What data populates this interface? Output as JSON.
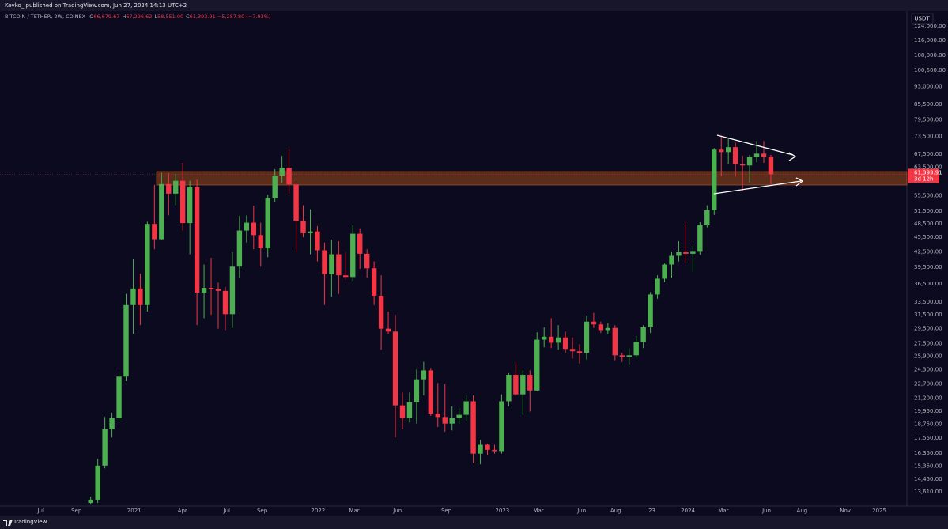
{
  "header": {
    "text": "Kevko_ published on TradingView.com, Jun 27, 2024 14:13 UTC+2"
  },
  "footer": {
    "brand": "TradingView"
  },
  "chart_data": {
    "type": "candlestick",
    "title": "BITCOIN / TETHER, 2W, COINEX",
    "legend_values": [
      {
        "key": "O",
        "value": "66,679.67"
      },
      {
        "key": "H",
        "value": "67,296.62"
      },
      {
        "key": "L",
        "value": "58,551.00"
      },
      {
        "key": "C",
        "value": "61,393.91"
      }
    ],
    "change": "−5,287.80 (−7.93%)",
    "currency": "USDT",
    "last_price_label": "61,393.91",
    "countdown": "3d 12h",
    "up_color": "#4caf50",
    "down_color": "#f23645",
    "log_scale": true,
    "x": [
      0,
      1,
      2,
      3,
      4,
      5,
      6,
      7,
      8,
      9,
      10,
      11,
      12,
      13,
      14,
      15,
      16,
      17,
      18,
      19,
      20,
      21,
      22,
      23,
      24,
      25,
      26,
      27,
      28,
      29,
      30,
      31,
      32,
      33,
      34,
      35,
      36,
      37,
      38,
      39,
      40,
      41,
      42,
      43,
      44,
      45,
      46,
      47,
      48,
      49,
      50,
      51,
      52,
      53,
      54,
      55,
      56,
      57,
      58,
      59,
      60,
      61,
      62,
      63,
      64,
      65,
      66,
      67,
      68,
      69,
      70,
      71,
      72,
      73,
      74,
      75,
      76,
      77,
      78,
      79,
      80,
      81,
      82,
      83,
      84,
      85,
      86,
      87,
      88,
      89,
      90,
      91,
      92,
      93,
      94,
      95,
      96
    ],
    "open": [
      12900,
      13100,
      15400,
      18300,
      19300,
      23500,
      33000,
      35700,
      33000,
      48500,
      45100,
      58600,
      56000,
      59500,
      48700,
      57800,
      35000,
      35800,
      35600,
      35300,
      31600,
      39600,
      47000,
      48800,
      46000,
      43200,
      54800,
      61000,
      63300,
      58500,
      49200,
      46400,
      46800,
      42800,
      38200,
      42000,
      38000,
      37700,
      46300,
      42100,
      39300,
      34500,
      29500,
      29100,
      20500,
      19300,
      20800,
      23200,
      24200,
      19700,
      19400,
      18800,
      19300,
      19600,
      20900,
      16300,
      17000,
      16600,
      16500,
      20900,
      23700,
      21600,
      23700,
      22000,
      28000,
      28400,
      27600,
      28300,
      26800,
      26500,
      26300,
      30500,
      30100,
      29300,
      29600,
      26000,
      25800,
      26000,
      27700,
      29700,
      34700,
      37400,
      40000,
      41700,
      42400,
      42100,
      42500,
      48200,
      51800,
      69000,
      68200,
      69800,
      64400,
      64000,
      66600,
      67700,
      66679.67
    ],
    "high": [
      13300,
      15900,
      19400,
      19800,
      24100,
      34800,
      41000,
      38300,
      49000,
      58400,
      61800,
      61700,
      61500,
      64800,
      59500,
      59800,
      40000,
      41300,
      36700,
      36000,
      42400,
      50400,
      50500,
      52900,
      48800,
      55700,
      62900,
      67000,
      69000,
      59000,
      53000,
      52000,
      48000,
      44400,
      45000,
      44700,
      42300,
      48200,
      47500,
      43000,
      40600,
      38000,
      32000,
      31500,
      21800,
      21800,
      24300,
      25200,
      24400,
      22800,
      22700,
      20400,
      20200,
      21500,
      21500,
      17400,
      17100,
      17000,
      21600,
      23900,
      25200,
      24200,
      24200,
      29000,
      29700,
      31000,
      30000,
      29100,
      28300,
      27400,
      31400,
      31800,
      30500,
      30300,
      30000,
      26300,
      26900,
      28500,
      30000,
      35100,
      38000,
      40200,
      42400,
      44700,
      48900,
      43700,
      48900,
      53000,
      69500,
      73700,
      72700,
      71300,
      67000,
      67300,
      71900,
      71900,
      67296.62
    ],
    "low": [
      12800,
      12900,
      15200,
      17600,
      19000,
      23000,
      28800,
      30000,
      32000,
      43000,
      44900,
      50500,
      53000,
      47000,
      42000,
      30000,
      31000,
      31500,
      29500,
      29300,
      29600,
      37500,
      44400,
      43000,
      39600,
      41400,
      53800,
      58900,
      56000,
      42500,
      45500,
      42000,
      40600,
      33000,
      34300,
      34800,
      37200,
      37000,
      39200,
      37600,
      33000,
      26700,
      28800,
      17600,
      18300,
      18900,
      18800,
      21500,
      19500,
      18500,
      18100,
      18200,
      18800,
      19000,
      15600,
      15500,
      16200,
      16300,
      16300,
      20400,
      21400,
      19600,
      19900,
      21900,
      27000,
      26900,
      26700,
      26300,
      25600,
      25000,
      25500,
      29600,
      28900,
      28700,
      25400,
      25200,
      24900,
      25700,
      26900,
      28900,
      34000,
      36800,
      37600,
      40600,
      40300,
      38600,
      41900,
      47700,
      50600,
      60800,
      64500,
      60700,
      56600,
      59000,
      65000,
      64800,
      58551.0
    ],
    "close": [
      13100,
      15400,
      18300,
      19300,
      23500,
      33000,
      35700,
      33000,
      48500,
      45100,
      58600,
      56000,
      59500,
      48700,
      57800,
      35000,
      35800,
      35600,
      35300,
      31600,
      39600,
      47000,
      48800,
      46000,
      43200,
      54800,
      61000,
      63300,
      58500,
      49200,
      46400,
      46800,
      42800,
      38200,
      42000,
      38000,
      37700,
      46300,
      42100,
      39300,
      34500,
      29500,
      29100,
      20500,
      19300,
      20800,
      23200,
      24200,
      19700,
      19400,
      18800,
      19300,
      19600,
      20900,
      16300,
      17000,
      16600,
      16500,
      20900,
      23700,
      21600,
      23700,
      22000,
      28000,
      28400,
      27600,
      28300,
      26800,
      26500,
      26300,
      30500,
      30100,
      29300,
      29600,
      26000,
      25800,
      26000,
      27700,
      29700,
      34700,
      37400,
      40000,
      41700,
      42400,
      42100,
      42500,
      48200,
      51800,
      69000,
      68200,
      69800,
      64400,
      64000,
      66600,
      67700,
      66700,
      61393.91
    ],
    "xlim": [
      -12.8,
      115.2
    ],
    "xticks": [
      {
        "value": -7.03,
        "label": "Jul"
      },
      {
        "value": -2.0,
        "label": "Sep"
      },
      {
        "value": 6.14,
        "label": "2021"
      },
      {
        "value": 12.95,
        "label": "Apr"
      },
      {
        "value": 19.2,
        "label": "Jul"
      },
      {
        "value": 24.2,
        "label": "Sep"
      },
      {
        "value": 32.1,
        "label": "2022"
      },
      {
        "value": 37.2,
        "label": "Mar"
      },
      {
        "value": 43.3,
        "label": "Jun"
      },
      {
        "value": 50.2,
        "label": "Sep"
      },
      {
        "value": 58.1,
        "label": "2023"
      },
      {
        "value": 63.2,
        "label": "Mar"
      },
      {
        "value": 69.3,
        "label": "Jun"
      },
      {
        "value": 74.1,
        "label": "Aug"
      },
      {
        "value": 79.2,
        "label": "23"
      },
      {
        "value": 84.3,
        "label": "2024"
      },
      {
        "value": 89.3,
        "label": "Mar"
      },
      {
        "value": 95.4,
        "label": "Jun"
      },
      {
        "value": 100.4,
        "label": "Aug"
      },
      {
        "value": 106.5,
        "label": "Nov"
      },
      {
        "value": 111.3,
        "label": "2025"
      }
    ],
    "ylim": [
      12710,
      132700
    ],
    "yticks": [
      {
        "value": 124000,
        "label": "124,000.00"
      },
      {
        "value": 116000,
        "label": "116,000.00"
      },
      {
        "value": 108000,
        "label": "108,000.00"
      },
      {
        "value": 100500,
        "label": "100,500.00"
      },
      {
        "value": 93000,
        "label": "93,000.00"
      },
      {
        "value": 85500,
        "label": "85,500.00"
      },
      {
        "value": 79500,
        "label": "79,500.00"
      },
      {
        "value": 73500,
        "label": "73,500.00"
      },
      {
        "value": 67500,
        "label": "67,500.00"
      },
      {
        "value": 63500,
        "label": "63,500.00"
      },
      {
        "value": 55500,
        "label": "55,500.00"
      },
      {
        "value": 51500,
        "label": "51,500.00"
      },
      {
        "value": 48500,
        "label": "48,500.00"
      },
      {
        "value": 45500,
        "label": "45,500.00"
      },
      {
        "value": 42500,
        "label": "42,500.00"
      },
      {
        "value": 39500,
        "label": "39,500.00"
      },
      {
        "value": 36500,
        "label": "36,500.00"
      },
      {
        "value": 33500,
        "label": "33,500.00"
      },
      {
        "value": 31500,
        "label": "31,500.00"
      },
      {
        "value": 29500,
        "label": "29,500.00"
      },
      {
        "value": 27500,
        "label": "27,500.00"
      },
      {
        "value": 25900,
        "label": "25,900.00"
      },
      {
        "value": 24300,
        "label": "24,300.00"
      },
      {
        "value": 22700,
        "label": "22,700.00"
      },
      {
        "value": 21200,
        "label": "21,200.00"
      },
      {
        "value": 19950,
        "label": "19,950.00"
      },
      {
        "value": 18750,
        "label": "18,750.00"
      },
      {
        "value": 17550,
        "label": "17,550.00"
      },
      {
        "value": 16350,
        "label": "16,350.00"
      },
      {
        "value": 15350,
        "label": "15,350.00"
      },
      {
        "value": 14450,
        "label": "14,450.00"
      },
      {
        "value": 13610,
        "label": "13,610.00"
      }
    ]
  }
}
